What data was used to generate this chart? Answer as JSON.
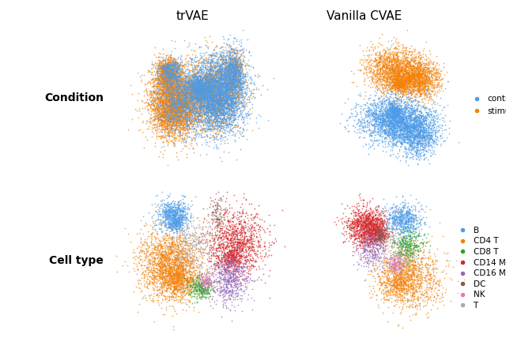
{
  "title_left": "trVAE",
  "title_right": "Vanilla CVAE",
  "row_labels": [
    "Condition",
    "Cell type"
  ],
  "condition_colors": {
    "control": "#4c9be8",
    "stimulated": "#f4820a"
  },
  "cell_type_colors": {
    "B": "#4c9be8",
    "CD4 T": "#f4820a",
    "CD8 T": "#2ca02c",
    "CD14 Mono": "#d62728",
    "CD16 Mono": "#9467bd",
    "DC": "#8c564b",
    "NK": "#e377c2",
    "T": "#aaaaaa"
  },
  "point_size": 1.5,
  "alpha": 0.7,
  "fig_width": 6.4,
  "fig_height": 4.28,
  "dpi": 100,
  "background_color": "#ffffff"
}
